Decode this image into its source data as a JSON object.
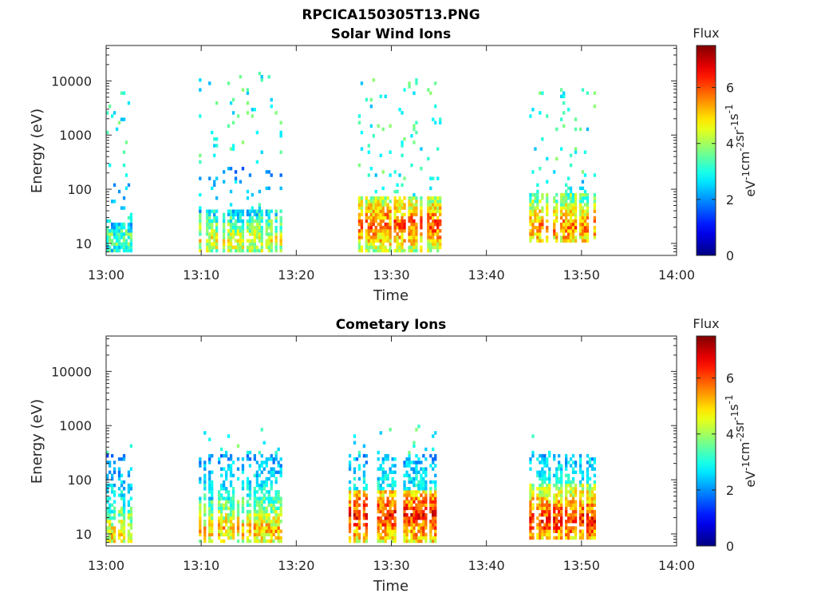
{
  "figure_title": "RPCICA150305T13.PNG",
  "colorbar": {
    "title": "Flux",
    "label_parts": [
      "eV",
      "-1",
      "cm",
      "-2",
      "sr",
      "-1",
      "s",
      "-1"
    ],
    "ticks": [
      "0",
      "2",
      "4",
      "6"
    ],
    "range": [
      0,
      7.5
    ],
    "colormap": "jet"
  },
  "chart_data": [
    {
      "type": "heatmap",
      "title": "Solar Wind Ions",
      "xlabel": "Time",
      "ylabel": "Energy (eV)",
      "x_ticks": [
        "13:00",
        "13:10",
        "13:20",
        "13:30",
        "13:40",
        "13:50",
        "14:00"
      ],
      "y_ticks": [
        "10",
        "100",
        "1000",
        "10000"
      ],
      "x_range_min": [
        0,
        60
      ],
      "y_range_eV": [
        6,
        45000
      ],
      "y_scale": "log",
      "bursts": [
        {
          "t_min": [
            0.0,
            2.8
          ],
          "high_eV": [
            150,
            8000
          ],
          "low_eV": [
            7,
            25
          ],
          "peak_flux": 4.5,
          "peak_eV": 12
        },
        {
          "t_min": [
            9.5,
            18.5
          ],
          "high_eV": [
            250,
            19000
          ],
          "low_eV": [
            7,
            40
          ],
          "peak_flux": 5.5,
          "peak_eV": 11
        },
        {
          "t_min": [
            26.5,
            35.2
          ],
          "high_eV": [
            100,
            11000
          ],
          "low_eV": [
            7,
            70
          ],
          "peak_flux": 6.8,
          "peak_eV": 22
        },
        {
          "t_min": [
            44.5,
            51.5
          ],
          "high_eV": [
            200,
            7000
          ],
          "low_eV": [
            10,
            80
          ],
          "peak_flux": 6.5,
          "peak_eV": 20
        }
      ]
    },
    {
      "type": "heatmap",
      "title": "Cometary Ions",
      "xlabel": "Time",
      "ylabel": "Energy (eV)",
      "x_ticks": [
        "13:00",
        "13:10",
        "13:20",
        "13:30",
        "13:40",
        "13:50",
        "14:00"
      ],
      "y_ticks": [
        "10",
        "100",
        "1000",
        "10000"
      ],
      "x_range_min": [
        0,
        60
      ],
      "y_range_eV": [
        6,
        45000
      ],
      "y_scale": "log",
      "bursts": [
        {
          "t_min": [
            0.0,
            2.6
          ],
          "high_eV": [
            300,
            900
          ],
          "low_eV": [
            7,
            30
          ],
          "peak_flux": 5.8,
          "peak_eV": 10
        },
        {
          "t_min": [
            9.5,
            18.5
          ],
          "high_eV": [
            300,
            950
          ],
          "low_eV": [
            7,
            50
          ],
          "peak_flux": 6.0,
          "peak_eV": 12
        },
        {
          "t_min": [
            25.5,
            35.0
          ],
          "high_eV": [
            300,
            1000
          ],
          "low_eV": [
            7,
            60
          ],
          "peak_flux": 7.3,
          "peak_eV": 22
        },
        {
          "t_min": [
            44.5,
            51.5
          ],
          "high_eV": [
            300,
            900
          ],
          "low_eV": [
            8,
            80
          ],
          "peak_flux": 7.2,
          "peak_eV": 18
        }
      ]
    }
  ]
}
